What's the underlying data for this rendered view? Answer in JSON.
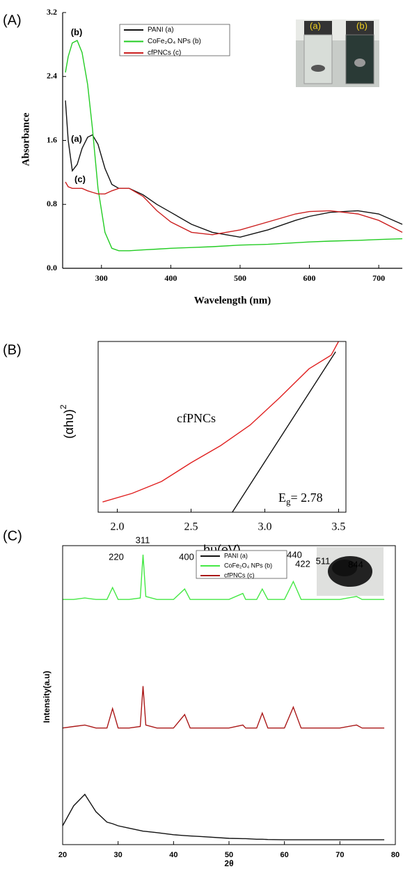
{
  "panel_labels": [
    "(A)",
    "(B)",
    "(C)"
  ],
  "chart_data": [
    {
      "type": "line",
      "x_label": "Wavelength (nm)",
      "y_label": "Absorbance",
      "x": [
        248,
        252,
        258,
        265,
        272,
        280,
        287,
        295,
        305,
        315,
        325,
        340,
        360,
        380,
        400,
        430,
        460,
        500,
        540,
        580,
        600,
        630,
        670,
        700,
        734
      ],
      "series": [
        {
          "name": "PANI (a)",
          "color": "#111111",
          "values": [
            2.1,
            1.6,
            1.22,
            1.3,
            1.5,
            1.64,
            1.67,
            1.55,
            1.25,
            1.05,
            1.0,
            1.0,
            0.92,
            0.8,
            0.7,
            0.55,
            0.45,
            0.39,
            0.48,
            0.6,
            0.65,
            0.7,
            0.72,
            0.68,
            0.55
          ]
        },
        {
          "name": "CoFe₂O₄ NPs (b)",
          "color": "#22cc22",
          "values": [
            2.45,
            2.65,
            2.82,
            2.85,
            2.7,
            2.3,
            1.75,
            1.0,
            0.45,
            0.25,
            0.22,
            0.22,
            0.23,
            0.24,
            0.25,
            0.26,
            0.27,
            0.29,
            0.3,
            0.32,
            0.33,
            0.34,
            0.35,
            0.36,
            0.37
          ]
        },
        {
          "name": "cfPNCs (c)",
          "color": "#cc2020",
          "values": [
            1.08,
            1.02,
            1.0,
            1.0,
            1.0,
            0.97,
            0.95,
            0.93,
            0.93,
            0.97,
            1.0,
            1.0,
            0.9,
            0.72,
            0.58,
            0.45,
            0.42,
            0.48,
            0.58,
            0.68,
            0.71,
            0.72,
            0.68,
            0.6,
            0.45
          ]
        }
      ],
      "xlim": [
        244,
        734
      ],
      "xticks": [
        300,
        400,
        500,
        600,
        700
      ],
      "ylim": [
        0,
        3.2
      ],
      "yticks": [
        {
          "value": 0,
          "label": "0.0"
        },
        0.8,
        1.6,
        2.4,
        3.2
      ],
      "annotations": [
        "(a)",
        "(b)",
        "(c)"
      ],
      "inset_labels": [
        "(a)",
        "(b)"
      ]
    },
    {
      "type": "line",
      "x_label": "hυ(eV)",
      "y_label": {
        "text": "(αhυ)",
        "sup": "2"
      },
      "series": [
        {
          "color": "#e02020",
          "x": [
            1.9,
            2.1,
            2.3,
            2.5,
            2.7,
            2.9,
            3.1,
            3.3,
            3.45,
            3.5
          ],
          "values": [
            0.06,
            0.11,
            0.18,
            0.29,
            0.39,
            0.51,
            0.67,
            0.84,
            0.92,
            1.0
          ]
        },
        {
          "color": "#111111",
          "x": [
            2.78,
            3.48
          ],
          "values": [
            0,
            0.94
          ]
        }
      ],
      "xlim": [
        1.87,
        3.55
      ],
      "xticks": [
        {
          "value": 2,
          "label": "2.0"
        },
        2.5,
        {
          "value": 3,
          "label": "3.0"
        },
        3.5
      ],
      "ylim": [
        0,
        1
      ],
      "annotations": [
        "cfPNCs"
      ],
      "band_gap_label": {
        "symbol": "E",
        "sub": "g",
        "rest": "= 2.78"
      }
    },
    {
      "type": "line",
      "x_label": "2θ",
      "y_label": "Intensity(a.u)",
      "x": [
        20,
        22,
        24,
        26,
        28,
        29,
        30,
        32,
        34,
        34.5,
        35,
        37,
        40,
        42,
        43,
        45,
        50,
        52.5,
        53,
        55,
        56,
        57,
        60,
        61.6,
        63,
        65,
        70,
        73,
        74,
        78
      ],
      "series": [
        {
          "name": "PANI (a)",
          "color": "#111111",
          "values": [
            0.63,
            1.3,
            1.68,
            1.1,
            0.75,
            0.7,
            0.63,
            0.55,
            0.47,
            0.45,
            0.44,
            0.4,
            0.33,
            0.3,
            0.29,
            0.27,
            0.21,
            0.2,
            0.2,
            0.18,
            0.18,
            0.17,
            0.16,
            0.16,
            0.16,
            0.16,
            0.16,
            0.16,
            0.16,
            0.16
          ]
        },
        {
          "name": "CoFe₂O₄ NPs (b)",
          "color": "#44e844",
          "values": [
            8.2,
            8.2,
            8.25,
            8.2,
            8.2,
            8.6,
            8.2,
            8.2,
            8.25,
            9.7,
            8.3,
            8.2,
            8.2,
            8.55,
            8.2,
            8.2,
            8.2,
            8.4,
            8.2,
            8.2,
            8.55,
            8.2,
            8.2,
            8.8,
            8.2,
            8.2,
            8.2,
            8.3,
            8.2,
            8.2
          ]
        },
        {
          "name": "cfPNCs (c)",
          "color": "#aa1818",
          "values": [
            3.9,
            3.95,
            4.0,
            3.9,
            3.9,
            4.55,
            3.9,
            3.9,
            3.95,
            5.3,
            4.0,
            3.9,
            3.9,
            4.35,
            3.9,
            3.9,
            3.9,
            4.0,
            3.9,
            3.9,
            4.4,
            3.9,
            3.9,
            4.6,
            3.9,
            3.9,
            3.9,
            4.0,
            3.9,
            3.9
          ]
        }
      ],
      "xlim": [
        20,
        80
      ],
      "xticks": [
        20,
        30,
        40,
        50,
        60,
        70,
        80
      ],
      "ylim": [
        0,
        10
      ],
      "annotations": [
        "220",
        "311",
        "400",
        "422",
        "511",
        "440",
        "844"
      ]
    }
  ]
}
